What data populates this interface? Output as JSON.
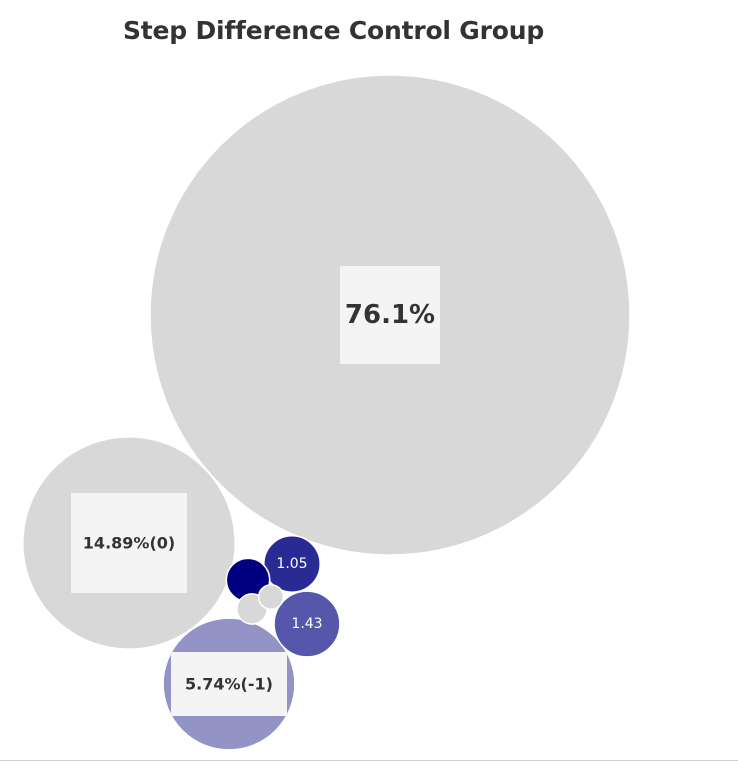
{
  "chart_data": {
    "type": "bubble",
    "title": "Step Difference Control Group",
    "points": [
      {
        "label": "76.1%",
        "value": 76.1,
        "color": "#d8d8d8",
        "label_box": true
      },
      {
        "label": "14.89%(0)",
        "value": 14.89,
        "color": "#d8d8d8",
        "label_box": true
      },
      {
        "label": "5.74%(-1)",
        "value": 5.74,
        "color": "#9393c5",
        "label_box": true
      },
      {
        "label": "1.43",
        "value": 1.43,
        "color": "#5656aa",
        "label_box": false
      },
      {
        "label": "1.05",
        "value": 1.05,
        "color": "#2a2a95",
        "label_box": false
      },
      {
        "label": "",
        "value": 0.62,
        "color": "#000080",
        "label_box": false
      },
      {
        "label": "",
        "value": 0.3,
        "color": "#d8d8d8",
        "label_box": false
      },
      {
        "label": "",
        "value": 0.2,
        "color": "#d8d8d8",
        "label_box": false
      }
    ],
    "legend": "none",
    "grid": false
  }
}
